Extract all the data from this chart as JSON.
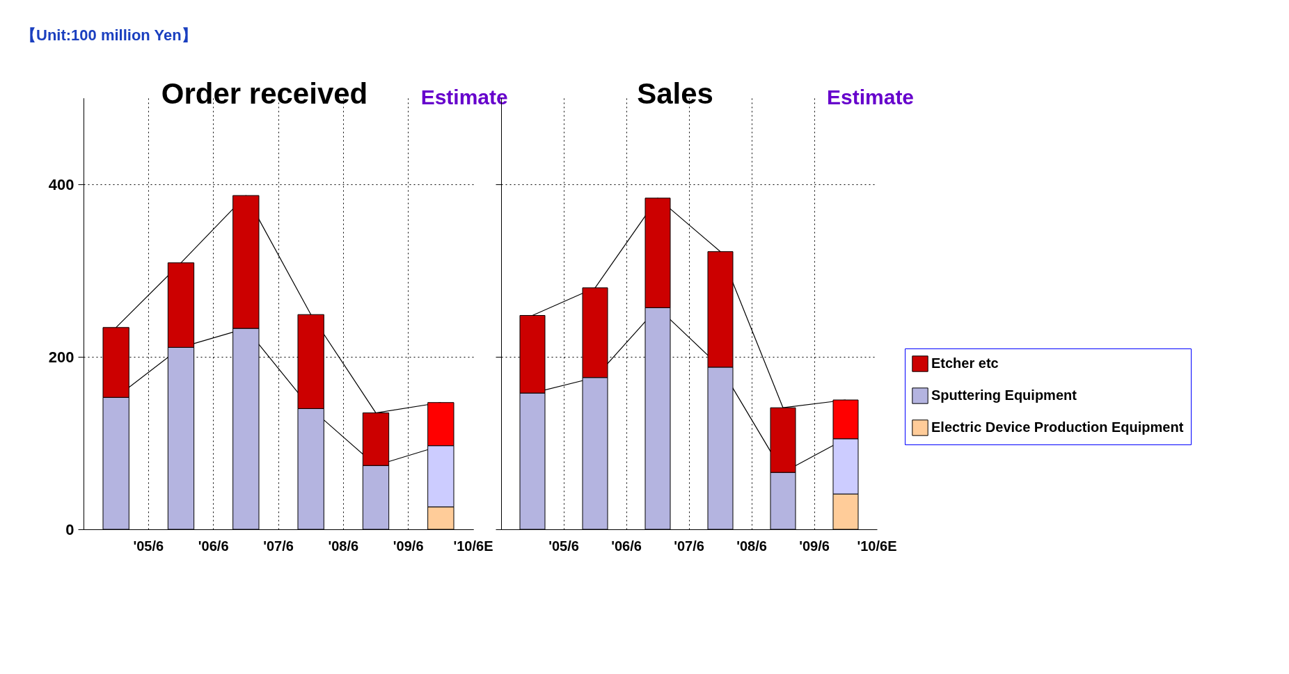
{
  "chart_data": [
    {
      "type": "bar",
      "title": "Order received",
      "stacked": true,
      "categories": [
        "'05/6",
        "'06/6",
        "'07/6",
        "'08/6",
        "'09/6",
        "'10/6E"
      ],
      "ylim": [
        0,
        500
      ],
      "yticks": [
        0,
        200,
        400
      ],
      "grid": true,
      "legend": "right",
      "annotations": [
        "【Unit:100 million Yen】",
        "Estimate"
      ],
      "series": [
        {
          "name": "Electric Device Production Equipment",
          "color": "#ffcc99",
          "colors": [
            "#ffcc99",
            "#ffcc99",
            "#ffcc99",
            "#ffcc99",
            "#ffcc99",
            "#ffcc99"
          ],
          "values": [
            null,
            null,
            null,
            null,
            0,
            26
          ]
        },
        {
          "name": "Sputtering Equipment",
          "color": "#b4b4e0",
          "colors": [
            "#b4b4e0",
            "#b4b4e0",
            "#b4b4e0",
            "#b4b4e0",
            "#b4b4e0",
            "#ccccff"
          ],
          "values": [
            153,
            211,
            233,
            140,
            74,
            71
          ]
        },
        {
          "name": "Etcher etc",
          "color": "#cc0000",
          "colors": [
            "#cc0000",
            "#cc0000",
            "#cc0000",
            "#cc0000",
            "#cc0000",
            "#ff0000"
          ],
          "values": [
            81,
            98,
            154,
            109,
            61,
            50
          ]
        }
      ]
    },
    {
      "type": "bar",
      "title": "Sales",
      "stacked": true,
      "categories": [
        "'05/6",
        "'06/6",
        "'07/6",
        "'08/6",
        "'09/6",
        "'10/6E"
      ],
      "ylim": [
        0,
        500
      ],
      "yticks": [
        0,
        200,
        400
      ],
      "tick_labels": "x",
      "grid": true,
      "legend": "right",
      "annotations": [
        "Estimate"
      ],
      "series": [
        {
          "name": "Electric Device Production Equipment",
          "color": "#ffcc99",
          "colors": [
            "#ffcc99",
            "#ffcc99",
            "#ffcc99",
            "#ffcc99",
            "#ffcc99",
            "#ffcc99"
          ],
          "values": [
            null,
            null,
            null,
            null,
            0,
            41
          ]
        },
        {
          "name": "Sputtering Equipment",
          "color": "#b4b4e0",
          "colors": [
            "#b4b4e0",
            "#b4b4e0",
            "#b4b4e0",
            "#b4b4e0",
            "#b4b4e0",
            "#ccccff"
          ],
          "values": [
            158,
            176,
            257,
            188,
            66,
            64
          ]
        },
        {
          "name": "Etcher etc",
          "color": "#cc0000",
          "colors": [
            "#cc0000",
            "#cc0000",
            "#cc0000",
            "#cc0000",
            "#cc0000",
            "#ff0000"
          ],
          "values": [
            90,
            104,
            127,
            134,
            75,
            45
          ]
        }
      ]
    }
  ]
}
